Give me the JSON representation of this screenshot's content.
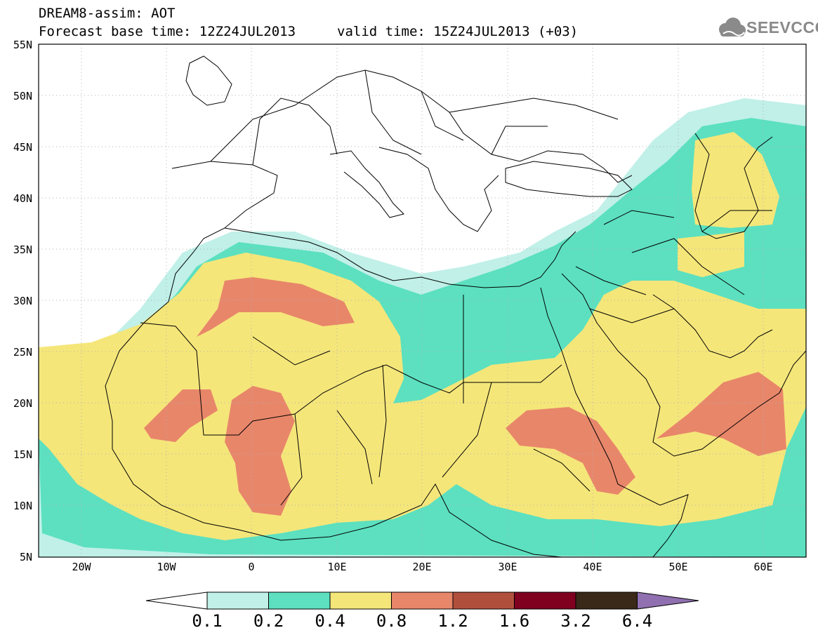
{
  "header": {
    "title": "DREAM8-assim: AOT",
    "base_time": "Forecast base time: 12Z24JUL2013",
    "valid_time": "valid time: 15Z24JUL2013 (+03)",
    "logo_text": "SEEVCCC"
  },
  "map": {
    "lon_range": [
      -25,
      65
    ],
    "lat_range": [
      5,
      55
    ],
    "lat_labels": [
      "55N",
      "50N",
      "45N",
      "40N",
      "35N",
      "30N",
      "25N",
      "20N",
      "15N",
      "10N",
      "5N"
    ],
    "lon_labels": [
      "20W",
      "10W",
      "0",
      "10E",
      "20E",
      "30E",
      "40E",
      "50E",
      "60E"
    ]
  },
  "legend": {
    "labels": [
      "0.1",
      "0.2",
      "0.4",
      "0.8",
      "1.2",
      "1.6",
      "3.2",
      "6.4"
    ],
    "colors": [
      "#ffffff",
      "#c0f0e8",
      "#5ce0c0",
      "#f5e67a",
      "#e8866a",
      "#b0503c",
      "#800020",
      "#3a2818",
      "#9070b0"
    ]
  }
}
